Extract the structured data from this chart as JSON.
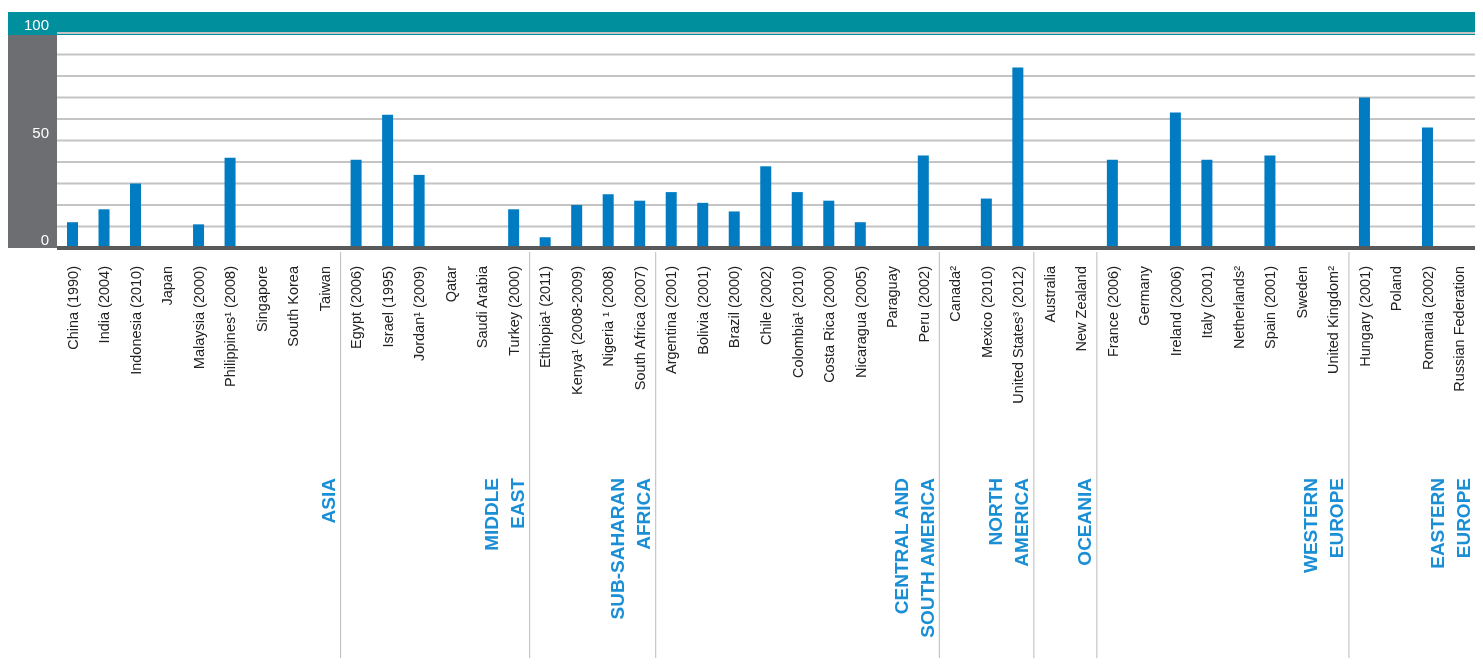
{
  "chart_data": {
    "type": "bar",
    "categories": [
      "China (1990)",
      "India (2004)",
      "Indonesia (2010)",
      "Japan",
      "Malaysia (2000)",
      "Philippines¹ (2008)",
      "Singapore",
      "South Korea",
      "Taiwan",
      "Egypt (2006)",
      "Israel (1995)",
      "Jordan¹ (2009)",
      "Qatar",
      "Saudi Arabia",
      "Turkey (2000)",
      "Ethiopia¹ (2011)",
      "Kenya¹ (2008-2009)",
      "Nigeria ¹ (2008)",
      "South Africa (2007)",
      "Argentina (2001)",
      "Bolivia (2001)",
      "Brazil (2000)",
      "Chile (2002)",
      "Colombia¹ (2010)",
      "Costa Rica (2000)",
      "Nicaragua (2005)",
      "Paraguay",
      "Peru (2002)",
      "Canada²",
      "Mexico (2010)",
      "United States³ (2012)",
      "Australia",
      "New Zealand",
      "France (2006)",
      "Germany",
      "Ireland (2006)",
      "Italy (2001)",
      "Netherlands²",
      "Spain (2001)",
      "Sweden",
      "United Kingdom²",
      "Hungary (2001)",
      "Poland",
      "Romania (2002)",
      "Russian Federation"
    ],
    "values": [
      12,
      18,
      30,
      null,
      11,
      42,
      null,
      null,
      null,
      41,
      62,
      34,
      null,
      null,
      18,
      5,
      20,
      25,
      22,
      26,
      21,
      17,
      38,
      26,
      22,
      12,
      null,
      43,
      null,
      23,
      84,
      null,
      null,
      41,
      null,
      63,
      41,
      null,
      43,
      null,
      null,
      70,
      null,
      56,
      null
    ],
    "color": "#017cc2",
    "ylim": [
      0,
      100
    ],
    "yticks": [
      0,
      {
        "value": 10,
        "label": null
      },
      {
        "value": 20,
        "label": null
      },
      {
        "value": 30,
        "label": null
      },
      {
        "value": 40,
        "label": null
      },
      50,
      {
        "value": 60,
        "label": null
      },
      {
        "value": 70,
        "label": null
      },
      {
        "value": 80,
        "label": null
      },
      {
        "value": 90,
        "label": null
      },
      100
    ],
    "grid": "y",
    "annotations": [
      "ASIA",
      "MIDDLE\nEAST",
      "SUB-SAHARAN\nAFRICA",
      "CENTRAL AND\nSOUTH AMERICA",
      "NORTH\nAMERICA",
      "OCEANIA",
      "WESTERN\nEUROPE",
      "EASTERN\nEUROPE"
    ]
  }
}
